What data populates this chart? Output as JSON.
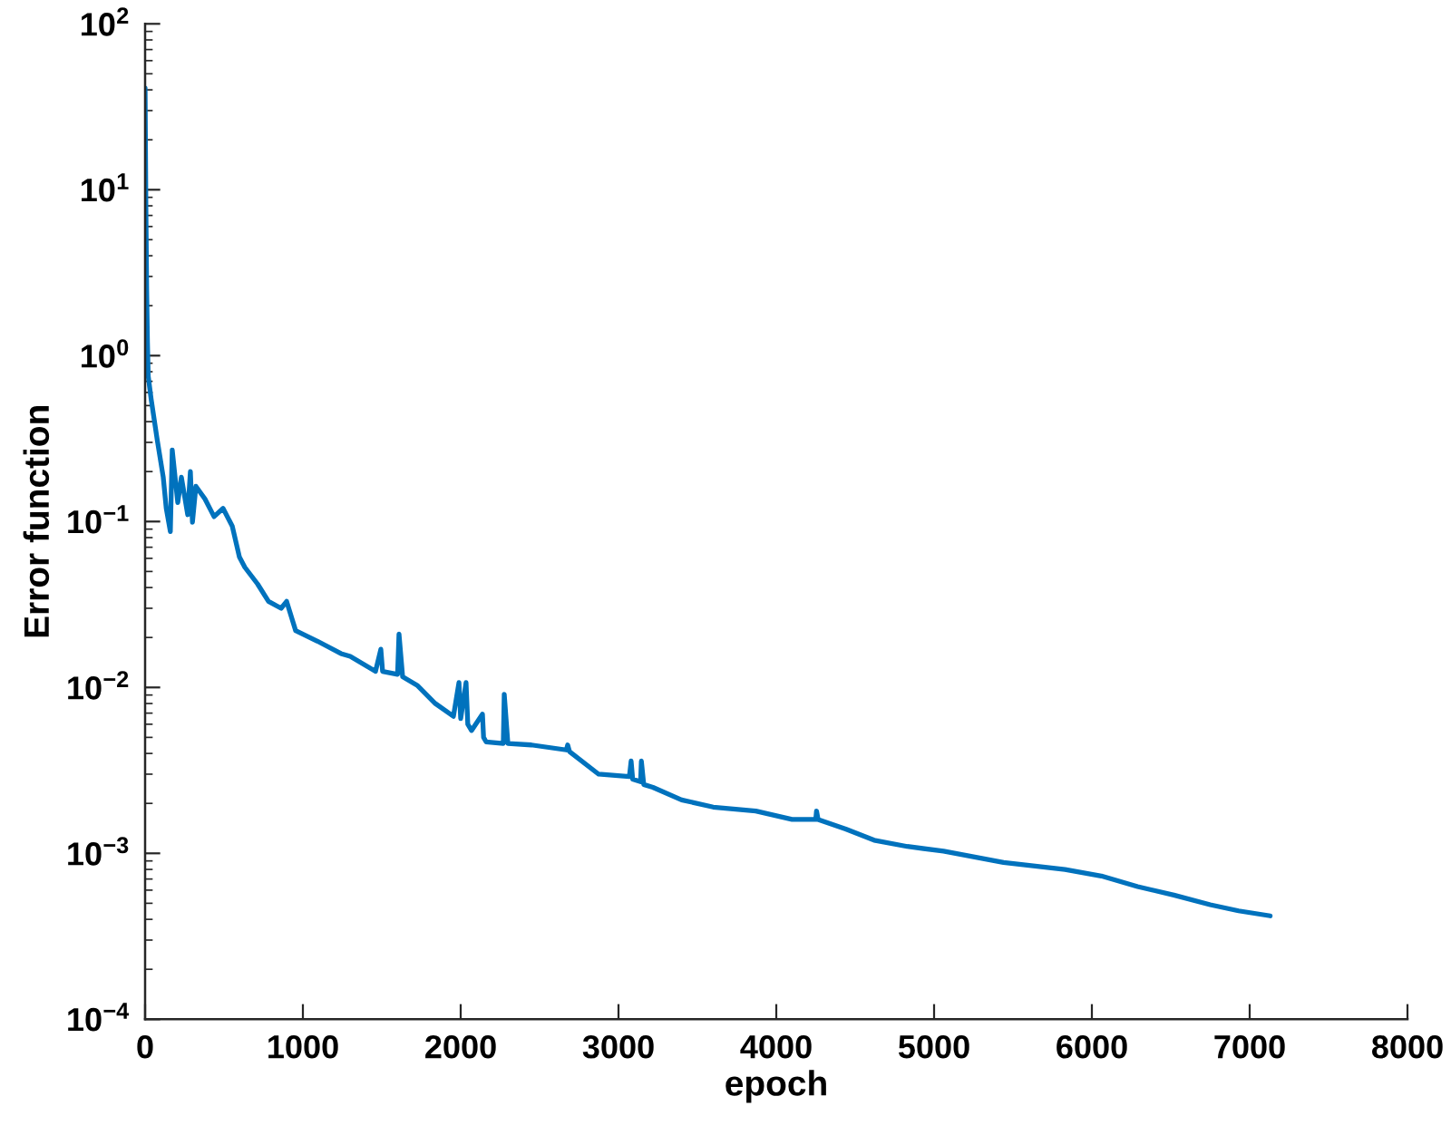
{
  "chart_data": {
    "type": "line",
    "xlabel": "epoch",
    "ylabel": "Error function",
    "xlim": [
      0,
      8000
    ],
    "xticks": [
      0,
      1000,
      2000,
      3000,
      4000,
      5000,
      6000,
      7000,
      8000
    ],
    "ylim": [
      0.0001,
      100
    ],
    "log": "y",
    "yticks": [
      {
        "value": 0.0001,
        "label": "10$^{−4}$"
      },
      {
        "value": 0.001,
        "label": "10$^{−3}$"
      },
      {
        "value": 0.01,
        "label": "10$^{−2}$"
      },
      {
        "value": 0.1,
        "label": "10$^{−1}$"
      },
      {
        "value": 1,
        "label": "10$^{0}$"
      },
      {
        "value": 10,
        "label": "10$^{1}$"
      },
      {
        "value": 100,
        "label": "10$^{2}$"
      }
    ],
    "series": [
      {
        "color": "#0072bd",
        "x": [
          0,
          5,
          10,
          15,
          20,
          38,
          77,
          115,
          134,
          160,
          172,
          207,
          230,
          270,
          287,
          300,
          322,
          379,
          437,
          494,
          552,
          598,
          632,
          713,
          782,
          862,
          897,
          954,
          1092,
          1241,
          1300,
          1460,
          1494,
          1505,
          1600,
          1609,
          1632,
          1724,
          1839,
          1954,
          1989,
          2000,
          2034,
          2045,
          2069,
          2138,
          2145,
          2161,
          2270,
          2276,
          2299,
          2448,
          2670,
          2678,
          2690,
          2874,
          3069,
          3080,
          3090,
          3140,
          3145,
          3160,
          3218,
          3400,
          3600,
          3870,
          4100,
          4250,
          4255,
          4265,
          4440,
          4620,
          4830,
          5060,
          5440,
          5830,
          6060,
          6290,
          6520,
          6750,
          6930,
          7130
        ],
        "values": [
          41,
          8,
          2.5,
          1.2,
          0.75,
          0.55,
          0.31,
          0.185,
          0.12,
          0.087,
          0.27,
          0.13,
          0.185,
          0.11,
          0.2,
          0.099,
          0.163,
          0.137,
          0.107,
          0.12,
          0.094,
          0.061,
          0.053,
          0.042,
          0.033,
          0.03,
          0.033,
          0.022,
          0.019,
          0.016,
          0.0154,
          0.0125,
          0.017,
          0.0125,
          0.012,
          0.021,
          0.0116,
          0.0103,
          0.008,
          0.0067,
          0.0107,
          0.0065,
          0.0107,
          0.006,
          0.0055,
          0.0069,
          0.005,
          0.0047,
          0.0046,
          0.0091,
          0.0046,
          0.0045,
          0.0042,
          0.0045,
          0.0041,
          0.003,
          0.0029,
          0.0036,
          0.0028,
          0.0027,
          0.0036,
          0.0026,
          0.0025,
          0.0021,
          0.0019,
          0.0018,
          0.0016,
          0.0016,
          0.0018,
          0.0016,
          0.0014,
          0.0012,
          0.0011,
          0.00103,
          0.00088,
          0.0008,
          0.00073,
          0.00063,
          0.00056,
          0.00049,
          0.00045,
          0.00042
        ]
      }
    ]
  }
}
